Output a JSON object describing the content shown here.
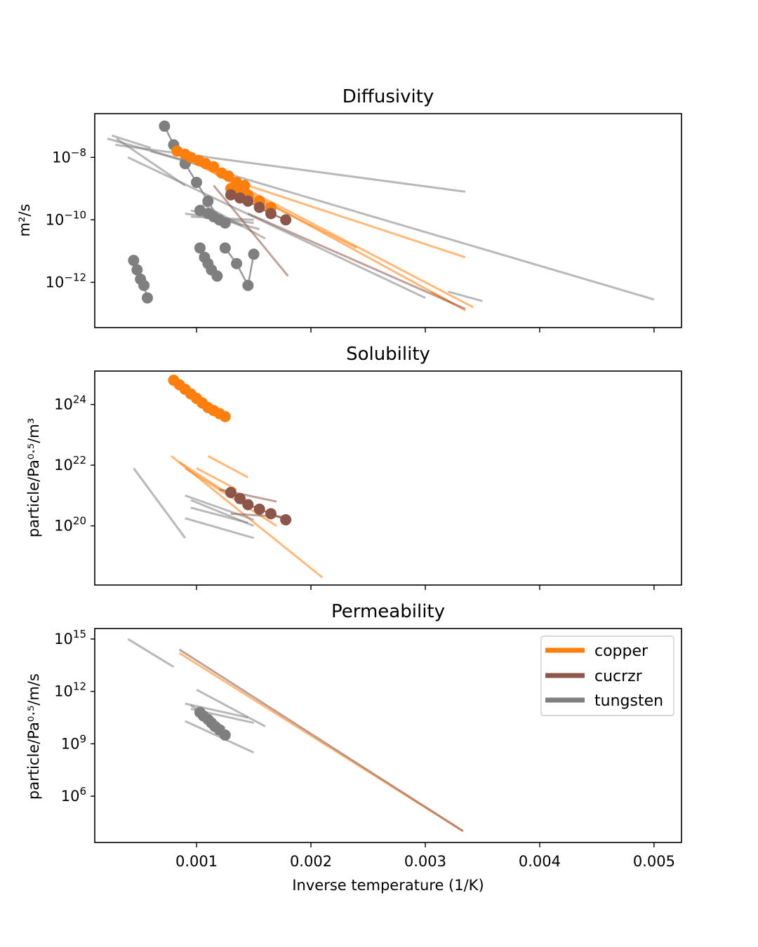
{
  "chart_data": [
    {
      "type": "scatter",
      "panel": "diffusivity",
      "title": "Diffusivity",
      "ylabel": "m²/s",
      "xlabel": "",
      "yscale": "log",
      "xlim": [
        0.00011,
        0.00524
      ],
      "ylim": [
        -13.45,
        -6.6
      ],
      "ytick_exponents": [
        -8,
        -10,
        -12
      ],
      "ytick_labels": [
        "10",
        "10",
        "10"
      ],
      "ytick_exponent_labels": [
        "−8",
        "−10",
        "−12"
      ],
      "lines": [
        {
          "material": "tungsten",
          "x": [
            0.00029,
            0.00335
          ],
          "y": [
            -7.6,
            -9.1
          ]
        },
        {
          "material": "tungsten",
          "x": [
            0.0006,
            0.005
          ],
          "y": [
            -7.8,
            -12.55
          ]
        },
        {
          "material": "tungsten",
          "x": [
            0.0003,
            0.0009
          ],
          "y": [
            -7.4,
            -8.9
          ]
        },
        {
          "material": "tungsten",
          "x": [
            0.00026,
            0.0006
          ],
          "y": [
            -7.3,
            -7.7
          ]
        },
        {
          "material": "tungsten",
          "x": [
            0.0009,
            0.0015
          ],
          "y": [
            -9.8,
            -10.1
          ]
        },
        {
          "material": "tungsten",
          "x": [
            0.00095,
            0.0015
          ],
          "y": [
            -9.9,
            -10.0
          ]
        },
        {
          "material": "tungsten",
          "x": [
            0.00095,
            0.00155
          ],
          "y": [
            -9.7,
            -10.3
          ]
        },
        {
          "material": "tungsten",
          "x": [
            0.00105,
            0.0016
          ],
          "y": [
            -9.5,
            -10.6
          ]
        },
        {
          "material": "tungsten",
          "x": [
            0.0011,
            0.0014
          ],
          "y": [
            -9.8,
            -10.2
          ]
        },
        {
          "material": "tungsten",
          "x": [
            0.0004,
            0.003
          ],
          "y": [
            -8.0,
            -12.5
          ]
        },
        {
          "material": "tungsten",
          "x": [
            0.0035,
            0.0032
          ],
          "y": [
            -12.6,
            -12.3
          ]
        },
        {
          "material": "tungsten",
          "x": [
            0.00022,
            0.0009
          ],
          "y": [
            -7.4,
            -8.1
          ]
        },
        {
          "material": "copper",
          "x": [
            0.00085,
            0.00342
          ],
          "y": [
            -7.9,
            -12.8
          ]
        },
        {
          "material": "copper",
          "x": [
            0.0009,
            0.00335
          ],
          "y": [
            -8.0,
            -12.9
          ]
        },
        {
          "material": "copper",
          "x": [
            0.0012,
            0.00335
          ],
          "y": [
            -8.6,
            -11.2
          ]
        },
        {
          "material": "copper",
          "x": [
            0.0013,
            0.0024
          ],
          "y": [
            -8.9,
            -10.9
          ]
        },
        {
          "material": "copper",
          "x": [
            0.00305,
            0.00325
          ],
          "y": [
            -12.3,
            -12.7
          ]
        },
        {
          "material": "cucrzr",
          "x": [
            0.00145,
            0.00335
          ],
          "y": [
            -9.8,
            -12.85
          ]
        },
        {
          "material": "cucrzr",
          "x": [
            0.00115,
            0.0018
          ],
          "y": [
            -8.9,
            -11.8
          ]
        }
      ],
      "points": [
        {
          "material": "tungsten",
          "x": [
            0.00072,
            0.0008,
            0.0009,
            0.001,
            0.0011,
            0.0012
          ],
          "y": [
            -7.0,
            -7.6,
            -8.2,
            -8.8,
            -9.4,
            -10.0
          ]
        },
        {
          "material": "tungsten",
          "x": [
            0.00045,
            0.00048,
            0.00051,
            0.00054,
            0.00057
          ],
          "y": [
            -11.3,
            -11.6,
            -11.9,
            -12.1,
            -12.5
          ]
        },
        {
          "material": "tungsten",
          "x": [
            0.00103,
            0.00107,
            0.0011,
            0.00113,
            0.00118
          ],
          "y": [
            -10.9,
            -11.2,
            -11.4,
            -11.6,
            -11.8
          ]
        },
        {
          "material": "tungsten",
          "x": [
            0.00103,
            0.0011,
            0.00115,
            0.0012,
            0.00125
          ],
          "y": [
            -9.7,
            -9.8,
            -9.9,
            -10.0,
            -10.1
          ]
        },
        {
          "material": "tungsten",
          "x": [
            0.00125,
            0.00135,
            0.00145,
            0.0015
          ],
          "y": [
            -10.9,
            -11.4,
            -12.1,
            -11.1
          ]
        },
        {
          "material": "copper",
          "x": [
            0.00083,
            0.0009,
            0.00095,
            0.00102,
            0.00108,
            0.00115,
            0.00122,
            0.00128,
            0.00135,
            0.00142
          ],
          "y": [
            -7.8,
            -7.9,
            -8.0,
            -8.1,
            -8.2,
            -8.3,
            -8.5,
            -8.6,
            -8.8,
            -8.9
          ]
        },
        {
          "material": "copper",
          "x": [
            0.0013,
            0.00138,
            0.00145,
            0.00155,
            0.00165
          ],
          "y": [
            -9.0,
            -9.1,
            -9.2,
            -9.4,
            -9.6
          ]
        },
        {
          "material": "cucrzr",
          "x": [
            0.0013,
            0.00138,
            0.00145,
            0.00155,
            0.00165,
            0.00178
          ],
          "y": [
            -9.2,
            -9.3,
            -9.4,
            -9.6,
            -9.8,
            -10.0
          ]
        }
      ]
    },
    {
      "type": "scatter",
      "panel": "solubility",
      "title": "Solubility",
      "ylabel": "particle/Pa⁰·⁵/m³",
      "xlabel": "",
      "yscale": "log",
      "xlim": [
        0.00011,
        0.00524
      ],
      "ylim": [
        18.05,
        25.1
      ],
      "ytick_exponents": [
        24,
        22,
        20
      ],
      "ytick_labels": [
        "10",
        "10",
        "10"
      ],
      "ytick_exponent_labels": [
        "24",
        "22",
        "20"
      ],
      "lines": [
        {
          "material": "copper",
          "x": [
            0.00078,
            0.0021
          ],
          "y": [
            22.3,
            18.3
          ]
        },
        {
          "material": "copper",
          "x": [
            0.0009,
            0.0017
          ],
          "y": [
            21.9,
            20.0
          ]
        },
        {
          "material": "copper",
          "x": [
            0.001,
            0.00135
          ],
          "y": [
            21.9,
            21.2
          ]
        },
        {
          "material": "copper",
          "x": [
            0.0011,
            0.00145
          ],
          "y": [
            22.3,
            21.6
          ]
        },
        {
          "material": "copper",
          "x": [
            0.00085,
            0.0013
          ],
          "y": [
            22.1,
            21.0
          ]
        },
        {
          "material": "cucrzr",
          "x": [
            0.0012,
            0.0017
          ],
          "y": [
            21.2,
            20.8
          ]
        },
        {
          "material": "cucrzr",
          "x": [
            0.0013,
            0.00175
          ],
          "y": [
            20.4,
            20.3
          ]
        },
        {
          "material": "tungsten",
          "x": [
            0.00045,
            0.0009
          ],
          "y": [
            21.9,
            19.6
          ]
        },
        {
          "material": "tungsten",
          "x": [
            0.00095,
            0.0015
          ],
          "y": [
            20.85,
            20.0
          ]
        },
        {
          "material": "tungsten",
          "x": [
            0.0009,
            0.0015
          ],
          "y": [
            21.0,
            20.2
          ]
        },
        {
          "material": "tungsten",
          "x": [
            0.00095,
            0.00145
          ],
          "y": [
            20.6,
            20.1
          ]
        },
        {
          "material": "tungsten",
          "x": [
            0.0009,
            0.0015
          ],
          "y": [
            20.25,
            19.6
          ]
        }
      ],
      "points": [
        {
          "material": "copper",
          "x": [
            0.0008,
            0.00085,
            0.0009,
            0.00095,
            0.001,
            0.00105,
            0.0011,
            0.00115,
            0.0012,
            0.00125
          ],
          "y": [
            24.8,
            24.65,
            24.5,
            24.35,
            24.2,
            24.05,
            23.9,
            23.8,
            23.7,
            23.6
          ]
        },
        {
          "material": "cucrzr",
          "x": [
            0.0013,
            0.00138,
            0.00145,
            0.00155,
            0.00165,
            0.00178
          ],
          "y": [
            21.1,
            20.9,
            20.7,
            20.55,
            20.4,
            20.2
          ]
        }
      ]
    },
    {
      "type": "scatter",
      "panel": "permeability",
      "title": "Permeability",
      "ylabel": "particle/Pa⁰·⁵/m/s",
      "xlabel": "Inverse temperature (1/K)",
      "yscale": "log",
      "xlim": [
        0.00011,
        0.00524
      ],
      "ylim": [
        3.35,
        15.6
      ],
      "ytick_exponents": [
        15,
        12,
        9,
        6
      ],
      "ytick_labels": [
        "10",
        "10",
        "10",
        "10"
      ],
      "ytick_exponent_labels": [
        "15",
        "12",
        "9",
        "6"
      ],
      "xticks": [
        0.001,
        0.002,
        0.003,
        0.004,
        0.005
      ],
      "xtick_labels": [
        "0.001",
        "0.002",
        "0.003",
        "0.004",
        "0.005"
      ],
      "lines": [
        {
          "material": "copper",
          "x": [
            0.00085,
            0.00333
          ],
          "y": [
            14.2,
            4.0
          ]
        },
        {
          "material": "cucrzr",
          "x": [
            0.00085,
            0.00333
          ],
          "y": [
            14.4,
            4.0
          ]
        },
        {
          "material": "tungsten",
          "x": [
            0.0004,
            0.0007
          ],
          "y": [
            15.0,
            13.8
          ]
        },
        {
          "material": "tungsten",
          "x": [
            0.0007,
            0.0008
          ],
          "y": [
            13.8,
            13.4
          ]
        },
        {
          "material": "tungsten",
          "x": [
            0.0009,
            0.0015
          ],
          "y": [
            10.3,
            8.5
          ]
        },
        {
          "material": "tungsten",
          "x": [
            0.0009,
            0.00145
          ],
          "y": [
            11.3,
            10.5
          ]
        },
        {
          "material": "tungsten",
          "x": [
            0.00095,
            0.0015
          ],
          "y": [
            11.0,
            10.2
          ]
        },
        {
          "material": "tungsten",
          "x": [
            0.001,
            0.0016
          ],
          "y": [
            12.1,
            10.0
          ]
        },
        {
          "material": "tungsten",
          "x": [
            0.00095,
            0.00125
          ],
          "y": [
            11.2,
            9.9
          ]
        }
      ],
      "points": [
        {
          "material": "tungsten",
          "x": [
            0.00103,
            0.00106,
            0.0011,
            0.00113,
            0.00116,
            0.0012,
            0.00125
          ],
          "y": [
            10.8,
            10.6,
            10.4,
            10.2,
            10.0,
            9.8,
            9.5
          ]
        }
      ]
    }
  ],
  "legend": {
    "placement": "top-right",
    "entries": [
      {
        "key": "copper",
        "label": "copper",
        "color": "#ff7f0e"
      },
      {
        "key": "cucrzr",
        "label": "cucrzr",
        "color": "#8c564b"
      },
      {
        "key": "tungsten",
        "label": "tungsten",
        "color": "#7f7f7f"
      }
    ]
  },
  "colors": {
    "copper": "#ff7f0e",
    "cucrzr": "#8c564b",
    "tungsten": "#7f7f7f"
  }
}
